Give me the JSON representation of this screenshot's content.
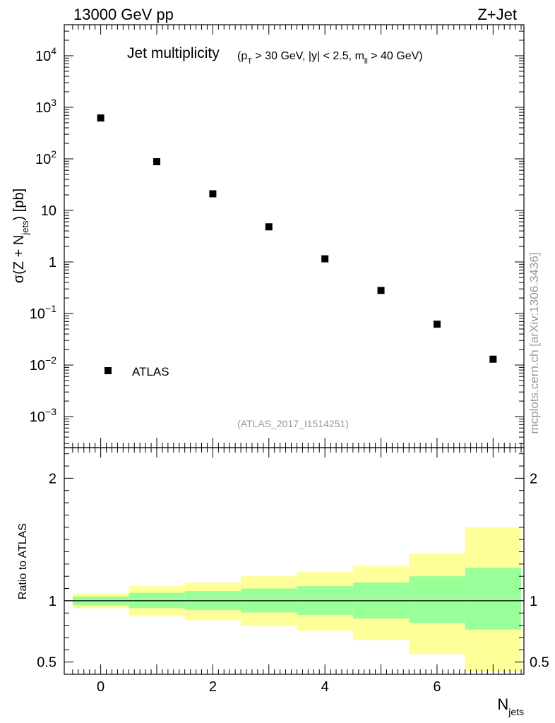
{
  "header": {
    "left": "13000 GeV pp",
    "right": "Z+Jet"
  },
  "side_label": "mcplots.cern.ch [arXiv:1306.3436]",
  "chart_data": [
    {
      "type": "scatter",
      "title": "Jet multiplicity",
      "subtitle": "(p_T > 30 GeV, |y| < 2.5, m_ll > 40 GeV)",
      "xlabel": "N_jets",
      "ylabel": "σ(Z + N_jets) [pb]",
      "log_y": true,
      "xlim": [
        -0.65,
        7.55
      ],
      "ylim": [
        0.00025,
        40000
      ],
      "legend": {
        "placement": "bottom-left",
        "entries": [
          "ATLAS"
        ]
      },
      "analysis_label": "(ATLAS_2017_I1514251)",
      "series": [
        {
          "name": "ATLAS",
          "x": [
            0,
            1,
            2,
            3,
            4,
            5,
            6,
            7
          ],
          "y": [
            620,
            88,
            21,
            4.8,
            1.15,
            0.28,
            0.062,
            0.013
          ]
        }
      ]
    },
    {
      "type": "area",
      "ylabel": "Ratio to ATLAS",
      "xlim": [
        -0.65,
        7.55
      ],
      "ylim": [
        0.4,
        2.25
      ],
      "y_ticks": [
        0.5,
        1,
        2
      ],
      "x_ticks": [
        0,
        2,
        4,
        6
      ],
      "reference_line": 1,
      "bins": [
        {
          "lo": -0.5,
          "hi": 0.5,
          "inner": [
            0.965,
            1.035
          ],
          "outer": [
            0.94,
            1.06
          ]
        },
        {
          "lo": 0.5,
          "hi": 1.5,
          "inner": [
            0.94,
            1.065
          ],
          "outer": [
            0.875,
            1.12
          ]
        },
        {
          "lo": 1.5,
          "hi": 2.5,
          "inner": [
            0.925,
            1.08
          ],
          "outer": [
            0.84,
            1.15
          ]
        },
        {
          "lo": 2.5,
          "hi": 3.5,
          "inner": [
            0.905,
            1.1
          ],
          "outer": [
            0.795,
            1.2
          ]
        },
        {
          "lo": 3.5,
          "hi": 4.5,
          "inner": [
            0.885,
            1.12
          ],
          "outer": [
            0.755,
            1.235
          ]
        },
        {
          "lo": 4.5,
          "hi": 5.5,
          "inner": [
            0.855,
            1.15
          ],
          "outer": [
            0.68,
            1.285
          ]
        },
        {
          "lo": 5.5,
          "hi": 6.5,
          "inner": [
            0.82,
            1.2
          ],
          "outer": [
            0.565,
            1.385
          ]
        },
        {
          "lo": 6.5,
          "hi": 7.5,
          "inner": [
            0.765,
            1.27
          ],
          "outer": [
            0.42,
            1.6
          ]
        }
      ],
      "colors": {
        "inner_band": "#99ff99",
        "outer_band": "#ffff99",
        "reference_line": "#000000"
      }
    }
  ]
}
